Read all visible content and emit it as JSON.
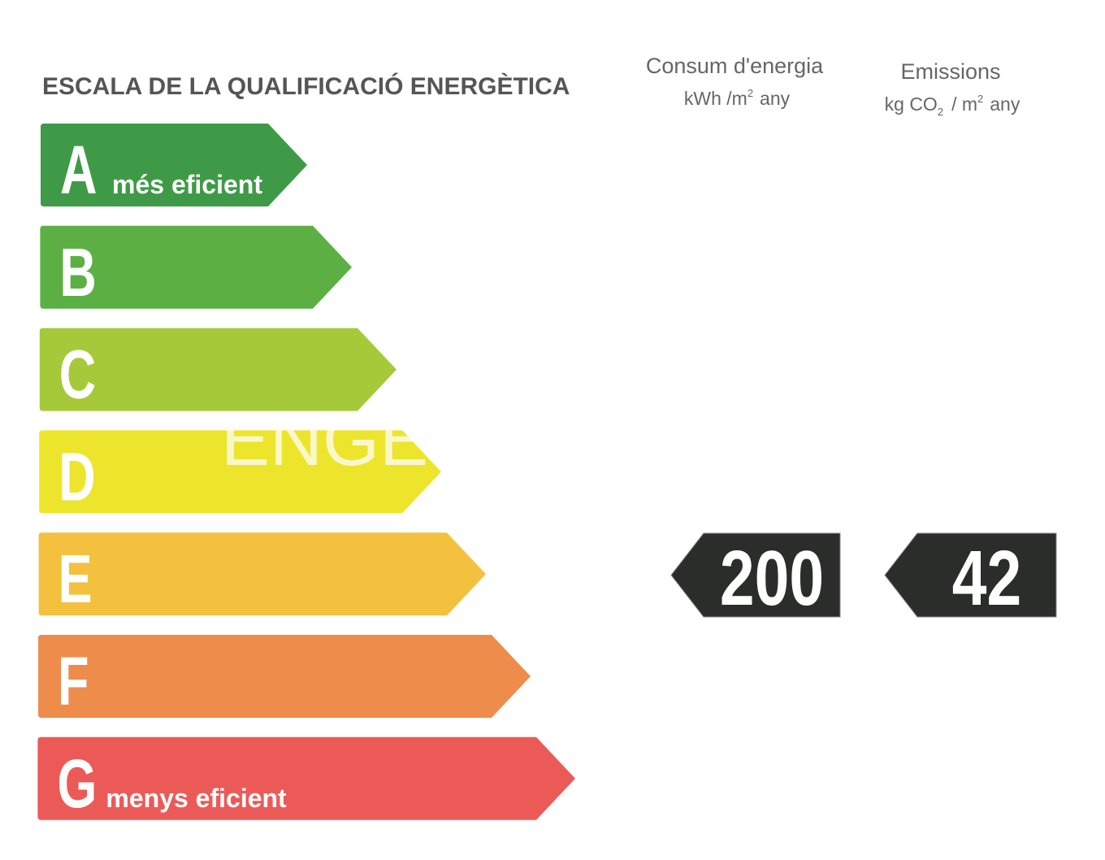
{
  "header": {
    "title": "ESCALA DE LA QUALIFICACIÓ ENERGÈTICA"
  },
  "classes": [
    {
      "letter": "A",
      "label": "més eficient",
      "color": "#3f9a47"
    },
    {
      "letter": "B",
      "color": "#5cb043"
    },
    {
      "letter": "C",
      "color": "#a6c93a"
    },
    {
      "letter": "D",
      "color": "#ece52c"
    },
    {
      "letter": "E",
      "color": "#f3c13d"
    },
    {
      "letter": "F",
      "color": "#ee8c4c"
    },
    {
      "letter": "G",
      "label": "menys eficient",
      "color": "#ec5a58"
    }
  ],
  "watermark": "ENGE",
  "consumption": {
    "title": "Consum d'energia",
    "unit_main": "kWh /m",
    "unit_sup": "2",
    "unit_tail": "any",
    "value": 200
  },
  "emissions": {
    "title": "Emissions",
    "unit_main": "kg CO",
    "unit_sub": "2",
    "unit_mid": "/ m",
    "unit_sup": "2",
    "unit_tail": "any",
    "value": 42
  }
}
